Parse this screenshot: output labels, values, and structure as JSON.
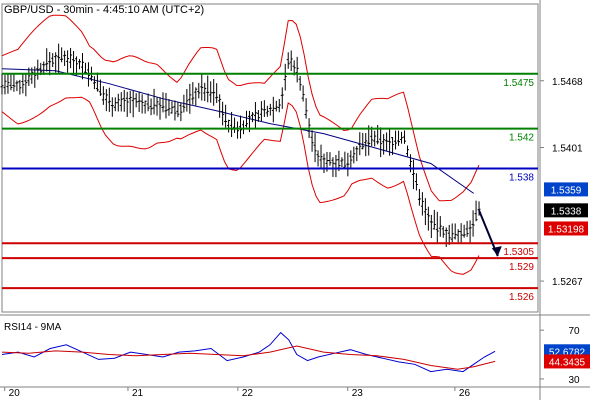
{
  "chart_data": [
    {
      "type": "candlestick",
      "title": "GBP/USD - 30min - 4:45:10 AM (UTC+2)",
      "ylim": [
        1.5236,
        1.5545
      ],
      "y_ticks": [
        "1.5468",
        "1.5401",
        "1.5267"
      ],
      "x_ticks": [
        "20",
        "21",
        "22",
        "23",
        "26"
      ],
      "levels": [
        {
          "value": 1.5475,
          "label": "1.5475",
          "color": "#008000"
        },
        {
          "value": 1.542,
          "label": "1.542",
          "color": "#008000"
        },
        {
          "value": 1.538,
          "label": "1.538",
          "color": "#0000c0"
        },
        {
          "value": 1.5305,
          "label": "1.5305",
          "color": "#cc0000"
        },
        {
          "value": 1.529,
          "label": "1.529",
          "color": "#cc0000"
        },
        {
          "value": 1.526,
          "label": "1.526",
          "color": "#cc0000"
        }
      ],
      "badges": [
        {
          "value": 1.5359,
          "label": "1.5359",
          "bg": "#0044cc",
          "fg": "#ffffff"
        },
        {
          "value": 1.5338,
          "label": "1.5338",
          "bg": "#000000",
          "fg": "#ffffff"
        },
        {
          "value": 1.53198,
          "label": "1.53198",
          "bg": "#dd0000",
          "fg": "#ffffff"
        }
      ],
      "price_path": [
        [
          0,
          1.5465
        ],
        [
          0.03,
          1.5462
        ],
        [
          0.06,
          1.5475
        ],
        [
          0.09,
          1.5488
        ],
        [
          0.12,
          1.5492
        ],
        [
          0.15,
          1.5484
        ],
        [
          0.17,
          1.547
        ],
        [
          0.19,
          1.5452
        ],
        [
          0.21,
          1.5445
        ],
        [
          0.24,
          1.5448
        ],
        [
          0.27,
          1.5443
        ],
        [
          0.29,
          1.5445
        ],
        [
          0.31,
          1.544
        ],
        [
          0.33,
          1.5438
        ],
        [
          0.35,
          1.545
        ],
        [
          0.37,
          1.546
        ],
        [
          0.4,
          1.5455
        ],
        [
          0.42,
          1.5425
        ],
        [
          0.44,
          1.542
        ],
        [
          0.46,
          1.5428
        ],
        [
          0.48,
          1.5435
        ],
        [
          0.5,
          1.544
        ],
        [
          0.52,
          1.5445
        ],
        [
          0.535,
          1.549
        ],
        [
          0.55,
          1.548
        ],
        [
          0.56,
          1.546
        ],
        [
          0.575,
          1.5415
        ],
        [
          0.59,
          1.539
        ],
        [
          0.61,
          1.5388
        ],
        [
          0.64,
          1.5385
        ],
        [
          0.665,
          1.54
        ],
        [
          0.69,
          1.541
        ],
        [
          0.72,
          1.5405
        ],
        [
          0.75,
          1.5412
        ],
        [
          0.765,
          1.538
        ],
        [
          0.78,
          1.535
        ],
        [
          0.8,
          1.5325
        ],
        [
          0.82,
          1.5318
        ],
        [
          0.84,
          1.5312
        ],
        [
          0.86,
          1.5315
        ],
        [
          0.875,
          1.5322
        ],
        [
          0.89,
          1.5338
        ]
      ],
      "forecast": [
        [
          0.89,
          1.5338
        ],
        [
          0.925,
          1.5292
        ]
      ],
      "ma_path": [
        [
          0,
          1.548
        ],
        [
          0.1,
          1.5478
        ],
        [
          0.2,
          1.5465
        ],
        [
          0.3,
          1.545
        ],
        [
          0.4,
          1.5438
        ],
        [
          0.5,
          1.5425
        ],
        [
          0.6,
          1.5415
        ],
        [
          0.7,
          1.54
        ],
        [
          0.8,
          1.5385
        ],
        [
          0.88,
          1.5355
        ]
      ],
      "bands_offset": 0.0035
    },
    {
      "type": "line",
      "title": "RSI14 - 9MA",
      "ylim": [
        25,
        80
      ],
      "y_ticks": [
        "70",
        "30"
      ],
      "badges": [
        {
          "value": 52.6782,
          "label": "52.6782",
          "bg": "#0044cc",
          "fg": "#ffffff"
        },
        {
          "value": 44.3435,
          "label": "44.3435",
          "bg": "#dd0000",
          "fg": "#ffffff"
        }
      ],
      "series": [
        {
          "color": "#0000cc",
          "values": [
            [
              0,
              50
            ],
            [
              0.03,
              52
            ],
            [
              0.06,
              48
            ],
            [
              0.09,
              55
            ],
            [
              0.12,
              58
            ],
            [
              0.15,
              52
            ],
            [
              0.18,
              46
            ],
            [
              0.21,
              47
            ],
            [
              0.24,
              52
            ],
            [
              0.27,
              50
            ],
            [
              0.3,
              48
            ],
            [
              0.33,
              52
            ],
            [
              0.36,
              53
            ],
            [
              0.39,
              55
            ],
            [
              0.42,
              45
            ],
            [
              0.45,
              48
            ],
            [
              0.48,
              52
            ],
            [
              0.5,
              58
            ],
            [
              0.52,
              68
            ],
            [
              0.535,
              62
            ],
            [
              0.55,
              50
            ],
            [
              0.57,
              45
            ],
            [
              0.59,
              48
            ],
            [
              0.62,
              51
            ],
            [
              0.65,
              54
            ],
            [
              0.68,
              50
            ],
            [
              0.71,
              47
            ],
            [
              0.74,
              44
            ],
            [
              0.77,
              42
            ],
            [
              0.8,
              36
            ],
            [
              0.83,
              38
            ],
            [
              0.86,
              36
            ],
            [
              0.88,
              42
            ],
            [
              0.9,
              48
            ],
            [
              0.92,
              52.68
            ]
          ]
        },
        {
          "color": "#cc0000",
          "values": [
            [
              0,
              52
            ],
            [
              0.05,
              51
            ],
            [
              0.1,
              53
            ],
            [
              0.15,
              52
            ],
            [
              0.2,
              50
            ],
            [
              0.25,
              49
            ],
            [
              0.3,
              50
            ],
            [
              0.35,
              51
            ],
            [
              0.4,
              50
            ],
            [
              0.45,
              49
            ],
            [
              0.5,
              52
            ],
            [
              0.55,
              57
            ],
            [
              0.6,
              52
            ],
            [
              0.65,
              50
            ],
            [
              0.7,
              49
            ],
            [
              0.75,
              46
            ],
            [
              0.8,
              41
            ],
            [
              0.85,
              38
            ],
            [
              0.88,
              40
            ],
            [
              0.92,
              44.34
            ]
          ]
        }
      ]
    }
  ]
}
